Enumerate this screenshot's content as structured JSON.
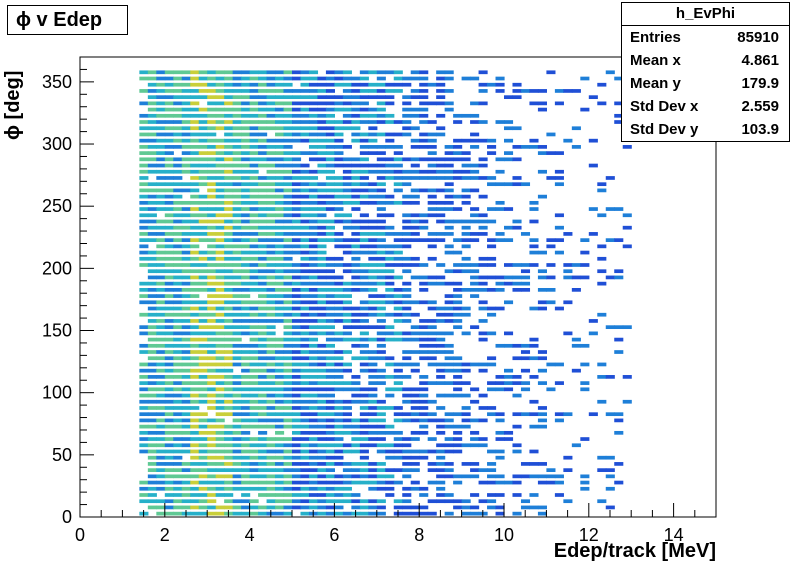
{
  "title": "ϕ v Edep",
  "stats": {
    "name": "h_EvPhi",
    "rows": [
      {
        "label": "Entries",
        "value": "85910"
      },
      {
        "label": "Mean x",
        "value": "4.861"
      },
      {
        "label": "Mean y",
        "value": "179.9"
      },
      {
        "label": "Std Dev x",
        "value": "2.559"
      },
      {
        "label": "Std Dev y",
        "value": "103.9"
      }
    ]
  },
  "chart_data": {
    "type": "heatmap",
    "title": "ϕ v Edep",
    "xlabel": "Edep/track [MeV]",
    "ylabel": "ϕ [deg]",
    "xlim": [
      0,
      15
    ],
    "ylim": [
      0,
      370
    ],
    "xticks": [
      "0",
      "2",
      "4",
      "6",
      "8",
      "10",
      "12",
      "14"
    ],
    "yticks": [
      "0",
      "50",
      "100",
      "150",
      "200",
      "250",
      "300",
      "350"
    ],
    "grid": false,
    "colormap": [
      "#1f4fd6",
      "#1e7fd8",
      "#26b0c9",
      "#5fc994",
      "#c9cf3a"
    ],
    "band_spacing_deg": 5,
    "dense_region_x": [
      1.5,
      6.0
    ],
    "peak_region_x": [
      2.5,
      3.5
    ],
    "data_x_range": [
      1.4,
      12.8
    ],
    "data_y_range": [
      0,
      360
    ]
  }
}
